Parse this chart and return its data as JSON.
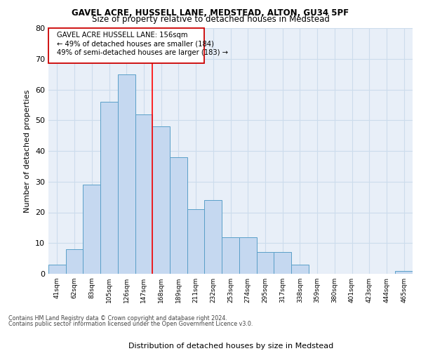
{
  "title1": "GAVEL ACRE, HUSSELL LANE, MEDSTEAD, ALTON, GU34 5PF",
  "title2": "Size of property relative to detached houses in Medstead",
  "xlabel": "Distribution of detached houses by size in Medstead",
  "ylabel": "Number of detached properties",
  "categories": [
    "41sqm",
    "62sqm",
    "83sqm",
    "105sqm",
    "126sqm",
    "147sqm",
    "168sqm",
    "189sqm",
    "211sqm",
    "232sqm",
    "253sqm",
    "274sqm",
    "295sqm",
    "317sqm",
    "338sqm",
    "359sqm",
    "380sqm",
    "401sqm",
    "423sqm",
    "444sqm",
    "465sqm"
  ],
  "values": [
    3,
    8,
    29,
    56,
    65,
    52,
    48,
    38,
    21,
    24,
    12,
    12,
    7,
    7,
    3,
    0,
    0,
    0,
    0,
    0,
    1
  ],
  "bar_color": "#c5d8f0",
  "bar_edge_color": "#5a9fc8",
  "highlight_label": "GAVEL ACRE HUSSELL LANE: 156sqm",
  "annotation_line1": "← 49% of detached houses are smaller (184)",
  "annotation_line2": "49% of semi-detached houses are larger (183) →",
  "annotation_box_color": "#ffffff",
  "annotation_box_edge": "#cc0000",
  "red_line_index": 5.5,
  "ylim": [
    0,
    80
  ],
  "yticks": [
    0,
    10,
    20,
    30,
    40,
    50,
    60,
    70,
    80
  ],
  "grid_color": "#ccdcec",
  "background_color": "#e8eff8",
  "footer1": "Contains HM Land Registry data © Crown copyright and database right 2024.",
  "footer2": "Contains public sector information licensed under the Open Government Licence v3.0."
}
